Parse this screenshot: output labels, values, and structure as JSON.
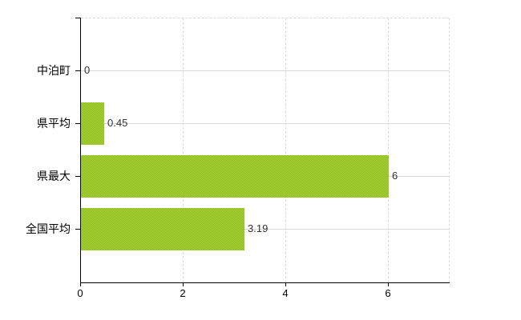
{
  "chart_data": {
    "type": "bar",
    "orientation": "horizontal",
    "title": "",
    "categories": [
      "中泊町",
      "県平均",
      "県最大",
      "全国平均"
    ],
    "values": [
      0,
      0.45,
      6,
      3.19
    ],
    "value_labels": [
      "0",
      "0.45",
      "6",
      "3.19"
    ],
    "x_ticks": [
      "0",
      "2",
      "4",
      "6"
    ],
    "x_tick_values": [
      0,
      2,
      4,
      6
    ],
    "xlim": [
      0,
      7.19
    ],
    "grid": true,
    "legend_position": "none",
    "bar_color_average": "#9cc62c",
    "bar_dither_colors": [
      "#aed136",
      "#8abc23"
    ],
    "gridline_color": "#d9d9d9",
    "axis_color": "#000000",
    "category_label_color": "#000000",
    "value_label_color": "#333333",
    "background_color": "#ffffff"
  }
}
